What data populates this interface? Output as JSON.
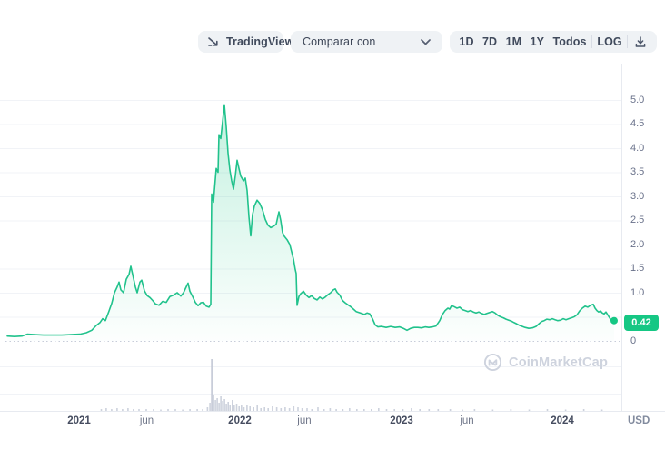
{
  "toolbar": {
    "tradingview_label": "TradingView",
    "compare_label": "Comparar con",
    "ranges": [
      "1D",
      "7D",
      "1M",
      "1Y",
      "Todos"
    ],
    "log_label": "LOG"
  },
  "watermark": {
    "text": "CoinMarketCap"
  },
  "current": {
    "price_label": "0.42",
    "value": 0.42
  },
  "colors": {
    "accent": "#16c784",
    "line": "#21c28c",
    "fill_top": "rgba(22,199,132,0.26)",
    "fill_bottom": "rgba(22,199,132,0.01)",
    "grid": "#f1f3f7",
    "axis_line": "#e7eaf0",
    "dotted_zero": "#c7ccd9",
    "dashed_bottom": "#cfd4df",
    "volume_bar": "#cdd2dd",
    "volume_spike": "#c3c8d5",
    "pill_bg": "#eff2f5",
    "text_dark": "#404a5c",
    "text_muted": "#69718a",
    "watermark": "#ced3de"
  },
  "chart_data": {
    "type": "area",
    "title": "Cryptocurrency price, all time (Todos) view",
    "currency_label": "USD",
    "x_range_description": "Jul 2020 - May 2024",
    "ylim": [
      0,
      5.0
    ],
    "grid": true,
    "current_value": 0.42,
    "y_ticks": [
      {
        "label": "5.0",
        "value": 5.0
      },
      {
        "label": "4.5",
        "value": 4.5
      },
      {
        "label": "4.0",
        "value": 4.0
      },
      {
        "label": "3.5",
        "value": 3.5
      },
      {
        "label": "3.0",
        "value": 3.0
      },
      {
        "label": "2.5",
        "value": 2.5
      },
      {
        "label": "2.0",
        "value": 2.0
      },
      {
        "label": "1.5",
        "value": 1.5
      },
      {
        "label": "1.0",
        "value": 1.0
      },
      {
        "label": "0",
        "value": 0
      }
    ],
    "x_ticks": [
      {
        "label": "2021",
        "f": 0.1183,
        "bold": true
      },
      {
        "label": "jun",
        "f": 0.2298,
        "bold": false
      },
      {
        "label": "2022",
        "f": 0.3832,
        "bold": true
      },
      {
        "label": "jun",
        "f": 0.4895,
        "bold": false
      },
      {
        "label": "2023",
        "f": 0.6497,
        "bold": true
      },
      {
        "label": "jun",
        "f": 0.7575,
        "bold": false
      },
      {
        "label": "2024",
        "f": 0.9147,
        "bold": true
      }
    ],
    "points": [
      [
        0.0,
        0.1
      ],
      [
        0.012,
        0.09
      ],
      [
        0.024,
        0.1
      ],
      [
        0.0329,
        0.14
      ],
      [
        0.0449,
        0.13
      ],
      [
        0.0599,
        0.12
      ],
      [
        0.0749,
        0.12
      ],
      [
        0.0898,
        0.12
      ],
      [
        0.1048,
        0.13
      ],
      [
        0.1198,
        0.14
      ],
      [
        0.1302,
        0.17
      ],
      [
        0.1392,
        0.22
      ],
      [
        0.1467,
        0.32
      ],
      [
        0.1527,
        0.38
      ],
      [
        0.1572,
        0.46
      ],
      [
        0.1617,
        0.42
      ],
      [
        0.1677,
        0.62
      ],
      [
        0.1722,
        0.78
      ],
      [
        0.1766,
        1.0
      ],
      [
        0.1811,
        1.12
      ],
      [
        0.1841,
        1.22
      ],
      [
        0.1871,
        1.06
      ],
      [
        0.1916,
        1.0
      ],
      [
        0.1961,
        1.28
      ],
      [
        0.2006,
        1.38
      ],
      [
        0.2036,
        1.55
      ],
      [
        0.2066,
        1.38
      ],
      [
        0.2111,
        1.12
      ],
      [
        0.2141,
        1.0
      ],
      [
        0.2186,
        1.22
      ],
      [
        0.2216,
        1.26
      ],
      [
        0.226,
        1.04
      ],
      [
        0.2305,
        0.94
      ],
      [
        0.235,
        0.9
      ],
      [
        0.2395,
        0.84
      ],
      [
        0.244,
        0.77
      ],
      [
        0.25,
        0.74
      ],
      [
        0.256,
        0.82
      ],
      [
        0.262,
        0.8
      ],
      [
        0.268,
        0.92
      ],
      [
        0.274,
        0.95
      ],
      [
        0.2799,
        1.0
      ],
      [
        0.2859,
        0.93
      ],
      [
        0.2904,
        1.0
      ],
      [
        0.2949,
        1.12
      ],
      [
        0.2979,
        1.2
      ],
      [
        0.3009,
        1.03
      ],
      [
        0.3054,
        0.92
      ],
      [
        0.3099,
        0.8
      ],
      [
        0.3144,
        0.73
      ],
      [
        0.3189,
        0.79
      ],
      [
        0.3234,
        0.8
      ],
      [
        0.3278,
        0.72
      ],
      [
        0.3323,
        0.7
      ],
      [
        0.3353,
        0.76
      ],
      [
        0.3368,
        3.05
      ],
      [
        0.3398,
        2.88
      ],
      [
        0.3413,
        3.12
      ],
      [
        0.3443,
        3.58
      ],
      [
        0.3473,
        3.5
      ],
      [
        0.3488,
        4.28
      ],
      [
        0.3518,
        4.2
      ],
      [
        0.3548,
        4.55
      ],
      [
        0.3578,
        4.9
      ],
      [
        0.3608,
        4.45
      ],
      [
        0.3638,
        3.9
      ],
      [
        0.3668,
        3.55
      ],
      [
        0.3697,
        3.32
      ],
      [
        0.3727,
        3.15
      ],
      [
        0.3757,
        3.42
      ],
      [
        0.3787,
        3.75
      ],
      [
        0.3817,
        3.58
      ],
      [
        0.3847,
        3.42
      ],
      [
        0.3892,
        3.32
      ],
      [
        0.3922,
        3.38
      ],
      [
        0.3952,
        3.12
      ],
      [
        0.3982,
        2.58
      ],
      [
        0.4012,
        2.18
      ],
      [
        0.4042,
        2.62
      ],
      [
        0.4072,
        2.8
      ],
      [
        0.4117,
        2.92
      ],
      [
        0.4162,
        2.85
      ],
      [
        0.4207,
        2.72
      ],
      [
        0.4251,
        2.52
      ],
      [
        0.4296,
        2.4
      ],
      [
        0.4341,
        2.35
      ],
      [
        0.4386,
        2.38
      ],
      [
        0.4431,
        2.42
      ],
      [
        0.4476,
        2.68
      ],
      [
        0.4506,
        2.5
      ],
      [
        0.4536,
        2.25
      ],
      [
        0.4566,
        2.17
      ],
      [
        0.4611,
        2.1
      ],
      [
        0.4656,
        2.0
      ],
      [
        0.4686,
        1.85
      ],
      [
        0.4716,
        1.7
      ],
      [
        0.4746,
        1.48
      ],
      [
        0.476,
        1.4
      ],
      [
        0.4775,
        0.74
      ],
      [
        0.4805,
        0.92
      ],
      [
        0.4835,
        0.98
      ],
      [
        0.488,
        1.03
      ],
      [
        0.4925,
        0.95
      ],
      [
        0.497,
        0.9
      ],
      [
        0.5015,
        0.94
      ],
      [
        0.506,
        0.88
      ],
      [
        0.5105,
        0.85
      ],
      [
        0.515,
        0.91
      ],
      [
        0.5194,
        0.87
      ],
      [
        0.5239,
        0.91
      ],
      [
        0.5284,
        0.96
      ],
      [
        0.5329,
        1.0
      ],
      [
        0.5374,
        1.06
      ],
      [
        0.5404,
        1.08
      ],
      [
        0.5434,
        1.01
      ],
      [
        0.5479,
        0.95
      ],
      [
        0.5524,
        0.84
      ],
      [
        0.5569,
        0.79
      ],
      [
        0.5614,
        0.75
      ],
      [
        0.5659,
        0.71
      ],
      [
        0.5704,
        0.66
      ],
      [
        0.5749,
        0.61
      ],
      [
        0.5793,
        0.59
      ],
      [
        0.5838,
        0.57
      ],
      [
        0.5883,
        0.55
      ],
      [
        0.5928,
        0.58
      ],
      [
        0.5973,
        0.56
      ],
      [
        0.6018,
        0.46
      ],
      [
        0.6063,
        0.33
      ],
      [
        0.6108,
        0.29
      ],
      [
        0.6168,
        0.3
      ],
      [
        0.6243,
        0.28
      ],
      [
        0.6317,
        0.3
      ],
      [
        0.6392,
        0.28
      ],
      [
        0.6467,
        0.29
      ],
      [
        0.6527,
        0.26
      ],
      [
        0.6587,
        0.22
      ],
      [
        0.6647,
        0.26
      ],
      [
        0.6707,
        0.28
      ],
      [
        0.6766,
        0.28
      ],
      [
        0.6826,
        0.27
      ],
      [
        0.6886,
        0.29
      ],
      [
        0.6946,
        0.28
      ],
      [
        0.7006,
        0.29
      ],
      [
        0.7066,
        0.31
      ],
      [
        0.7126,
        0.42
      ],
      [
        0.7171,
        0.55
      ],
      [
        0.7216,
        0.63
      ],
      [
        0.726,
        0.68
      ],
      [
        0.729,
        0.66
      ],
      [
        0.732,
        0.73
      ],
      [
        0.7365,
        0.71
      ],
      [
        0.741,
        0.68
      ],
      [
        0.7455,
        0.7
      ],
      [
        0.75,
        0.65
      ],
      [
        0.7545,
        0.63
      ],
      [
        0.759,
        0.61
      ],
      [
        0.7635,
        0.63
      ],
      [
        0.768,
        0.6
      ],
      [
        0.7725,
        0.58
      ],
      [
        0.7769,
        0.6
      ],
      [
        0.7814,
        0.57
      ],
      [
        0.7859,
        0.55
      ],
      [
        0.7904,
        0.57
      ],
      [
        0.7949,
        0.59
      ],
      [
        0.7994,
        0.61
      ],
      [
        0.8039,
        0.58
      ],
      [
        0.8084,
        0.53
      ],
      [
        0.8129,
        0.5
      ],
      [
        0.8174,
        0.48
      ],
      [
        0.8219,
        0.45
      ],
      [
        0.8263,
        0.43
      ],
      [
        0.8308,
        0.41
      ],
      [
        0.8353,
        0.38
      ],
      [
        0.8398,
        0.35
      ],
      [
        0.8443,
        0.32
      ],
      [
        0.8488,
        0.3
      ],
      [
        0.8533,
        0.28
      ],
      [
        0.8593,
        0.26
      ],
      [
        0.8653,
        0.27
      ],
      [
        0.8713,
        0.3
      ],
      [
        0.8757,
        0.35
      ],
      [
        0.8802,
        0.4
      ],
      [
        0.8847,
        0.42
      ],
      [
        0.8892,
        0.45
      ],
      [
        0.8937,
        0.44
      ],
      [
        0.8982,
        0.46
      ],
      [
        0.9027,
        0.44
      ],
      [
        0.9072,
        0.42
      ],
      [
        0.9117,
        0.43
      ],
      [
        0.9162,
        0.46
      ],
      [
        0.9207,
        0.44
      ],
      [
        0.9251,
        0.46
      ],
      [
        0.9296,
        0.48
      ],
      [
        0.9341,
        0.5
      ],
      [
        0.9386,
        0.54
      ],
      [
        0.9431,
        0.62
      ],
      [
        0.9476,
        0.68
      ],
      [
        0.9521,
        0.72
      ],
      [
        0.9566,
        0.7
      ],
      [
        0.9611,
        0.74
      ],
      [
        0.9656,
        0.76
      ],
      [
        0.9686,
        0.68
      ],
      [
        0.9716,
        0.63
      ],
      [
        0.9746,
        0.6
      ],
      [
        0.9775,
        0.62
      ],
      [
        0.9805,
        0.58
      ],
      [
        0.9835,
        0.56
      ],
      [
        0.9865,
        0.6
      ],
      [
        0.9895,
        0.54
      ],
      [
        0.9925,
        0.48
      ],
      [
        0.9955,
        0.43
      ],
      [
        1.0,
        0.42
      ]
    ],
    "volume_bars": [
      [
        0.155,
        2
      ],
      [
        0.163,
        3
      ],
      [
        0.172,
        2
      ],
      [
        0.181,
        3
      ],
      [
        0.19,
        2
      ],
      [
        0.199,
        3
      ],
      [
        0.208,
        2
      ],
      [
        0.217,
        2
      ],
      [
        0.229,
        2
      ],
      [
        0.241,
        2
      ],
      [
        0.253,
        1.5
      ],
      [
        0.265,
        2
      ],
      [
        0.277,
        2
      ],
      [
        0.289,
        1.5
      ],
      [
        0.301,
        2
      ],
      [
        0.313,
        2
      ],
      [
        0.322,
        2
      ],
      [
        0.33,
        4
      ],
      [
        0.334,
        9
      ],
      [
        0.337,
        57
      ],
      [
        0.34,
        18
      ],
      [
        0.343,
        12
      ],
      [
        0.346,
        14
      ],
      [
        0.349,
        9
      ],
      [
        0.352,
        16
      ],
      [
        0.355,
        11
      ],
      [
        0.358,
        13
      ],
      [
        0.361,
        8
      ],
      [
        0.364,
        10
      ],
      [
        0.367,
        7
      ],
      [
        0.371,
        12
      ],
      [
        0.374,
        6
      ],
      [
        0.378,
        8
      ],
      [
        0.382,
        5
      ],
      [
        0.386,
        7
      ],
      [
        0.39,
        4
      ],
      [
        0.395,
        6
      ],
      [
        0.4,
        5
      ],
      [
        0.406,
        4
      ],
      [
        0.412,
        6
      ],
      [
        0.418,
        3
      ],
      [
        0.424,
        4
      ],
      [
        0.43,
        3
      ],
      [
        0.437,
        5
      ],
      [
        0.444,
        4
      ],
      [
        0.451,
        3
      ],
      [
        0.458,
        4
      ],
      [
        0.465,
        3
      ],
      [
        0.472,
        5
      ],
      [
        0.479,
        4
      ],
      [
        0.486,
        3
      ],
      [
        0.494,
        3
      ],
      [
        0.502,
        2
      ],
      [
        0.512,
        4
      ],
      [
        0.522,
        2
      ],
      [
        0.532,
        3
      ],
      [
        0.542,
        2
      ],
      [
        0.553,
        2
      ],
      [
        0.564,
        3
      ],
      [
        0.576,
        2
      ],
      [
        0.588,
        2
      ],
      [
        0.6,
        2
      ],
      [
        0.612,
        3
      ],
      [
        0.625,
        2
      ],
      [
        0.638,
        2
      ],
      [
        0.652,
        2
      ],
      [
        0.666,
        3
      ],
      [
        0.68,
        2
      ],
      [
        0.695,
        2
      ],
      [
        0.71,
        2
      ],
      [
        0.73,
        2
      ],
      [
        0.75,
        1.5
      ],
      [
        0.77,
        2
      ],
      [
        0.8,
        1.5
      ],
      [
        0.83,
        2
      ],
      [
        0.86,
        1.5
      ],
      [
        0.89,
        2
      ],
      [
        0.92,
        1.5
      ],
      [
        0.95,
        2
      ],
      [
        0.98,
        1.5
      ]
    ]
  }
}
